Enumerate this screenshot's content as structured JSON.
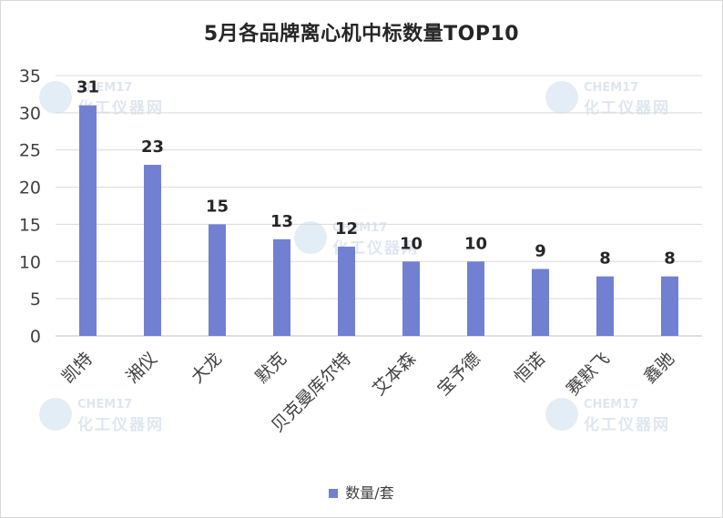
{
  "title": "5月各品牌离心机中标数量TOP10",
  "watermark": {
    "line1": "CHEM17",
    "line2": "化工仪器网"
  },
  "chart_data": {
    "type": "bar",
    "title": "5月各品牌离心机中标数量TOP10",
    "categories": [
      "凯特",
      "湘仪",
      "大龙",
      "默克",
      "贝克曼库尔特",
      "艾本森",
      "宝予德",
      "恒诺",
      "赛默飞",
      "鑫驰"
    ],
    "series": [
      {
        "name": "数量/套",
        "values": [
          31,
          23,
          15,
          13,
          12,
          10,
          10,
          9,
          8,
          8
        ],
        "color": "#7280d2"
      }
    ],
    "ylim": [
      0,
      35
    ],
    "yticks": [
      0,
      5,
      10,
      15,
      20,
      25,
      30,
      35
    ],
    "grid": true,
    "legend": "bottom"
  }
}
